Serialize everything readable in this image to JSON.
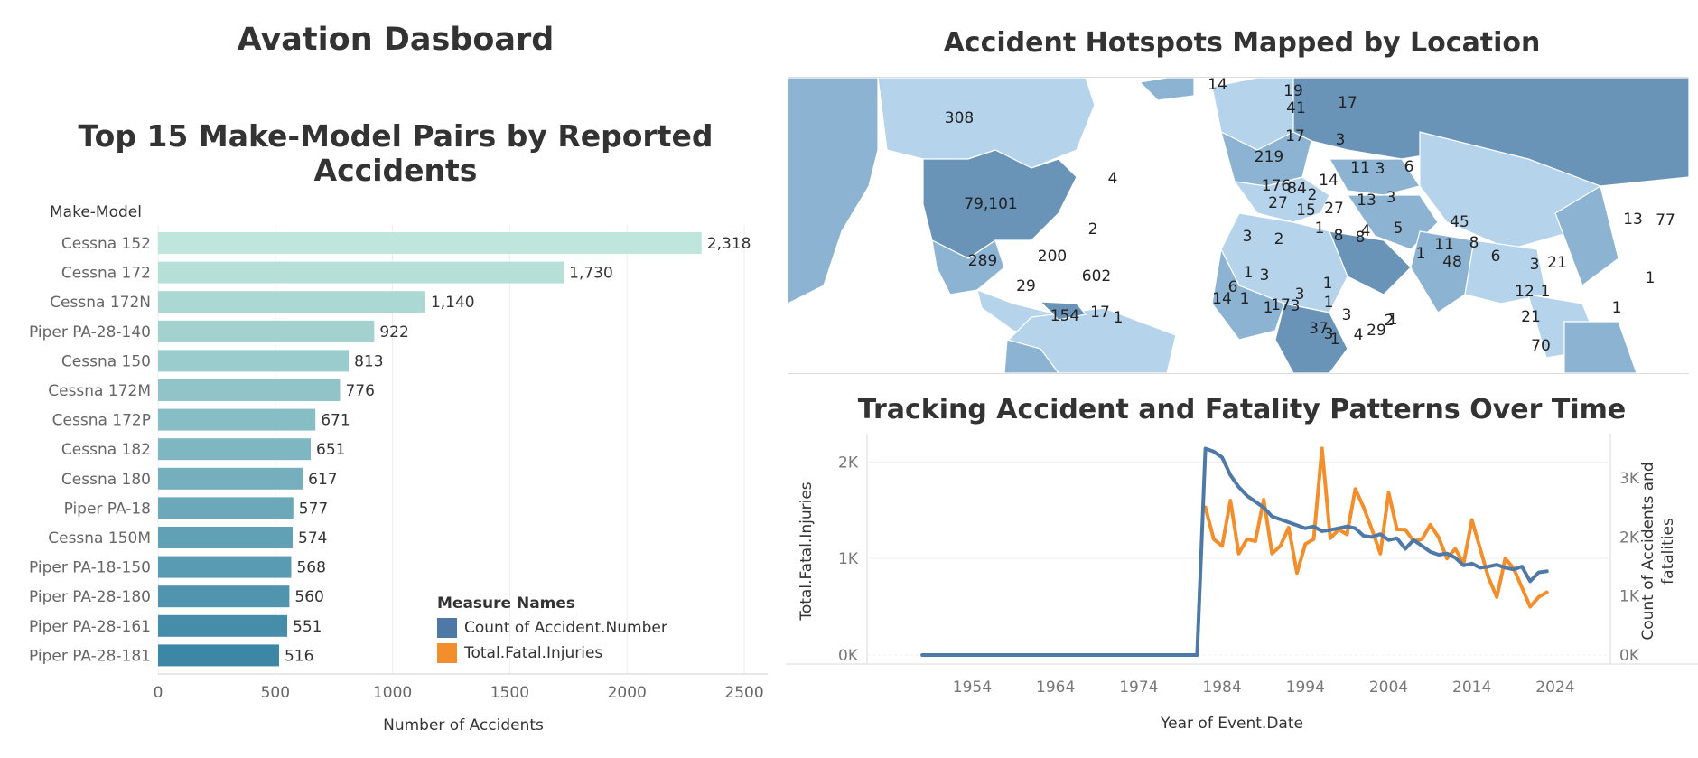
{
  "dashboard": {
    "title": "Avation Dasboard"
  },
  "colors": {
    "bar_light": "#bfe6dc",
    "bar_dark": "#3d86a6",
    "series_count": "#4e79a7",
    "series_fatal": "#f28e2b",
    "map_light": "#b5d3ea",
    "map_mid": "#8db3d3",
    "map_dark": "#6a93b8"
  },
  "bar_chart": {
    "title": "Top 15 Make-Model Pairs by Reported Accidents",
    "row_header": "Make-Model",
    "xlabel": "Number of Accidents"
  },
  "map": {
    "title": "Accident Hotspots Mapped by Location",
    "labels": [
      "308",
      "79,101",
      "289",
      "200",
      "29",
      "602",
      "154",
      "17",
      "1",
      "2",
      "4",
      "14",
      "41",
      "19",
      "17",
      "17",
      "3",
      "219",
      "176",
      "84",
      "14",
      "11",
      "3",
      "2",
      "27",
      "15",
      "27",
      "13",
      "6",
      "3",
      "45",
      "13",
      "77",
      "3",
      "2",
      "1",
      "8",
      "4",
      "5",
      "1",
      "11",
      "8",
      "48",
      "6",
      "3",
      "21",
      "12",
      "1",
      "6",
      "1",
      "3",
      "1",
      "17",
      "1",
      "3",
      "1",
      "1",
      "3",
      "37",
      "4",
      "29",
      "2",
      "1",
      "3",
      "21",
      "70",
      "1",
      "1",
      "14",
      "3",
      "1",
      "8"
    ]
  },
  "line_chart": {
    "title": "Tracking Accident and Fatality Patterns Over Time",
    "ylabel_left": "Total.Fatal.Injuries",
    "ylabel_right": "Count of Accidents and fatalities",
    "xlabel": "Year of Event.Date",
    "legend_title": "Measure Names"
  },
  "chart_data": [
    {
      "type": "bar",
      "title": "Top 15 Make-Model Pairs by Reported Accidents",
      "xlabel": "Number of Accidents",
      "ylabel": "Make-Model",
      "categories": [
        "Cessna 152",
        "Cessna 172",
        "Cessna 172N",
        "Piper PA-28-140",
        "Cessna 150",
        "Cessna 172M",
        "Cessna 172P",
        "Cessna 182",
        "Cessna 180",
        "Piper PA-18",
        "Cessna 150M",
        "Piper PA-18-150",
        "Piper PA-28-180",
        "Piper PA-28-161",
        "Piper PA-28-181"
      ],
      "values": [
        2318,
        1730,
        1140,
        922,
        813,
        776,
        671,
        651,
        617,
        577,
        574,
        568,
        560,
        551,
        516
      ],
      "value_labels": [
        "2,318",
        "1,730",
        "1,140",
        "922",
        "813",
        "776",
        "671",
        "651",
        "617",
        "577",
        "574",
        "568",
        "560",
        "551",
        "516"
      ],
      "xlim": [
        0,
        2600
      ],
      "xticks": [
        0,
        500,
        1000,
        1500,
        2000,
        2500
      ],
      "grid": true
    },
    {
      "type": "line",
      "title": "Tracking Accident and Fatality Patterns Over Time",
      "xlabel": "Year of Event.Date",
      "x_ticks": [
        1954,
        1964,
        1974,
        1984,
        1994,
        2004,
        2014,
        2024
      ],
      "xlim": [
        1943,
        2029
      ],
      "y_left": {
        "label": "Total.Fatal.Injuries",
        "lim": [
          0,
          2200
        ],
        "ticks": [
          0,
          1000,
          2000
        ],
        "tick_labels": [
          "0K",
          "1K",
          "2K"
        ]
      },
      "y_right": {
        "label": "Count of Accidents and fatalities",
        "lim": [
          0,
          3600
        ],
        "ticks": [
          0,
          1000,
          2000,
          3000
        ],
        "tick_labels": [
          "0K",
          "1K",
          "2K",
          "3K"
        ]
      },
      "legend": {
        "title": "Measure Names",
        "placement": "bottom-left"
      },
      "series": [
        {
          "name": "Count of Accident.Number",
          "axis": "right",
          "x": [
            1948,
            1962,
            1974,
            1981,
            1982,
            1983,
            1984,
            1985,
            1986,
            1987,
            1988,
            1989,
            1990,
            1991,
            1992,
            1993,
            1994,
            1995,
            1996,
            1997,
            1998,
            1999,
            2000,
            2001,
            2002,
            2003,
            2004,
            2005,
            2006,
            2007,
            2008,
            2009,
            2010,
            2011,
            2012,
            2013,
            2014,
            2015,
            2016,
            2017,
            2018,
            2019,
            2020,
            2021,
            2022,
            2023
          ],
          "y": [
            0,
            0,
            0,
            0,
            3500,
            3450,
            3350,
            3050,
            2850,
            2700,
            2600,
            2500,
            2350,
            2300,
            2250,
            2200,
            2150,
            2180,
            2100,
            2120,
            2150,
            2180,
            2150,
            2020,
            2000,
            2050,
            1950,
            1980,
            1800,
            1950,
            1850,
            1750,
            1700,
            1720,
            1650,
            1520,
            1550,
            1480,
            1500,
            1530,
            1480,
            1450,
            1500,
            1250,
            1400,
            1420
          ]
        },
        {
          "name": "Total.Fatal.Injuries",
          "axis": "left",
          "x": [
            1982,
            1983,
            1984,
            1985,
            1986,
            1987,
            1988,
            1989,
            1990,
            1991,
            1992,
            1993,
            1994,
            1995,
            1996,
            1997,
            1998,
            1999,
            2000,
            2001,
            2002,
            2003,
            2004,
            2005,
            2006,
            2007,
            2008,
            2009,
            2010,
            2011,
            2012,
            2013,
            2014,
            2015,
            2016,
            2017,
            2018,
            2019,
            2020,
            2021,
            2022,
            2023
          ],
          "y": [
            1530,
            1200,
            1130,
            1600,
            1050,
            1200,
            1180,
            1610,
            1050,
            1130,
            1320,
            850,
            1150,
            1200,
            2140,
            1210,
            1300,
            1250,
            1720,
            1530,
            1300,
            1050,
            1680,
            1300,
            1300,
            1180,
            1200,
            1350,
            1220,
            1000,
            1100,
            950,
            1400,
            1100,
            800,
            600,
            1000,
            900,
            700,
            500,
            600,
            650
          ]
        }
      ]
    }
  ]
}
